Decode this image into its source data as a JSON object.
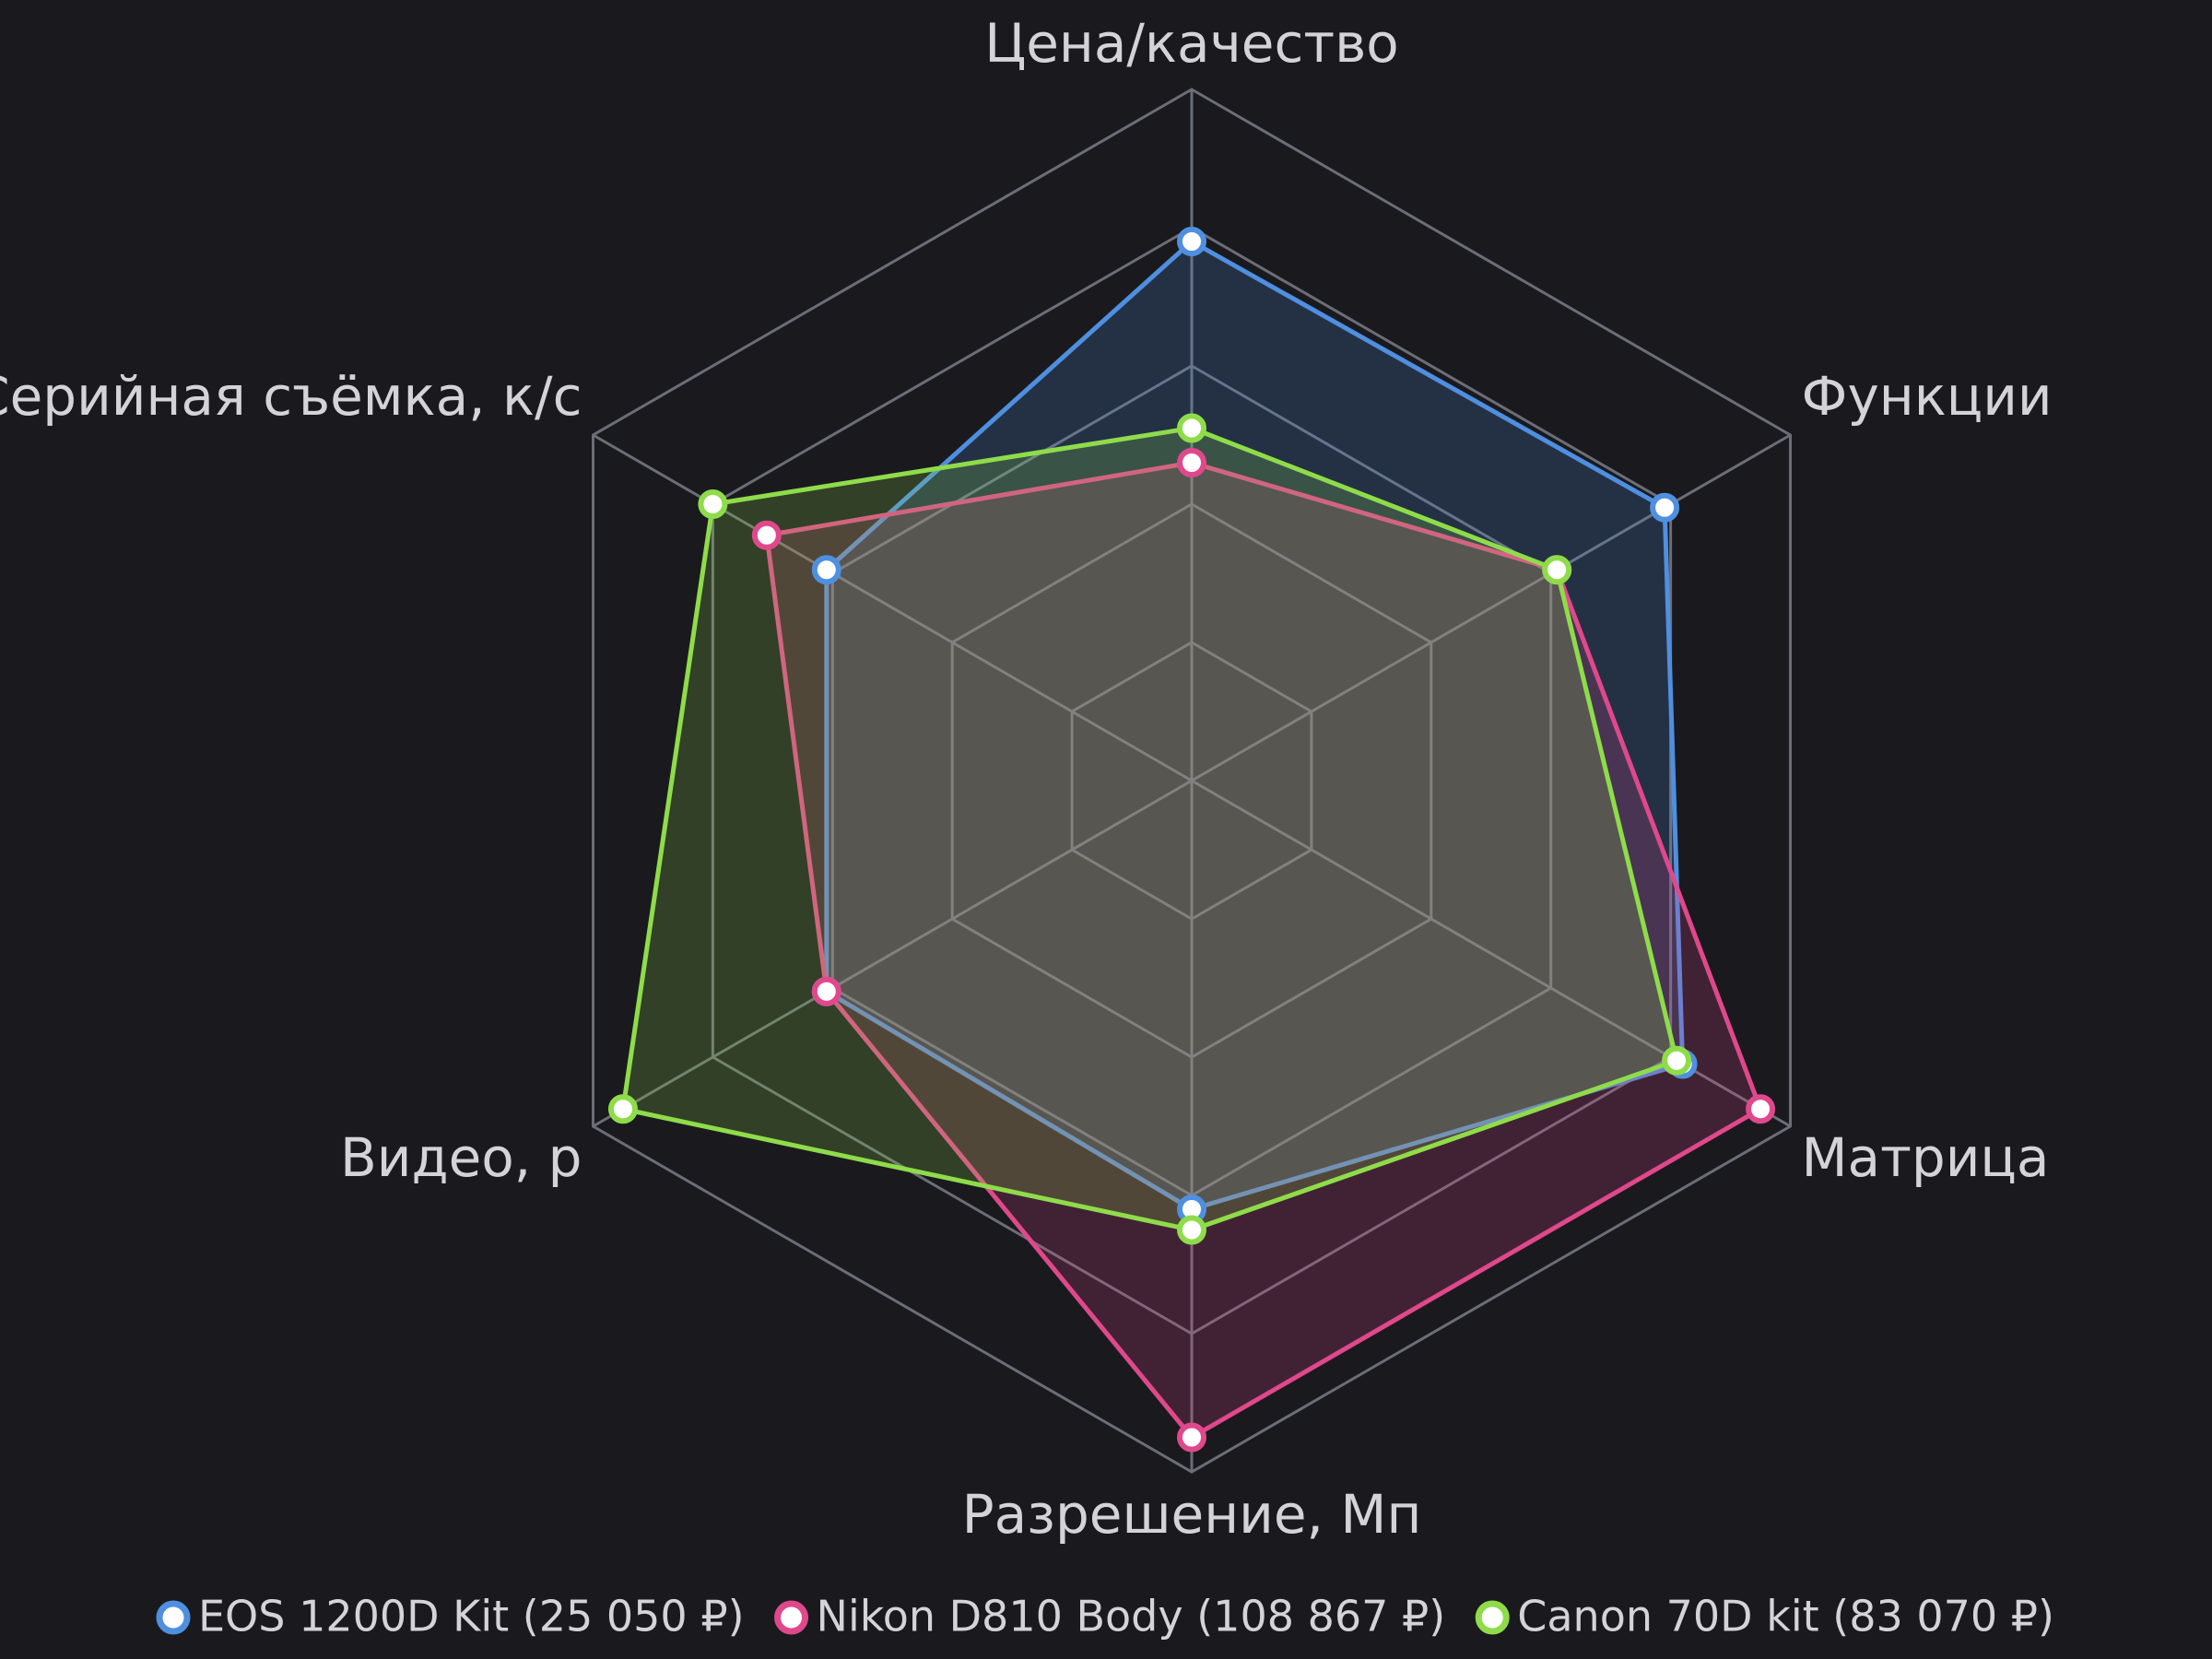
{
  "chart_data": {
    "type": "radar",
    "categories": [
      "Цена/качество",
      "Функции",
      "Матрица",
      "Разрешение, Мп",
      "Видео, р",
      "Серийная съёмка, к/с"
    ],
    "ylim": [
      0,
      5
    ],
    "yticks": [
      1,
      2,
      3,
      4,
      5
    ],
    "grid": true,
    "series": [
      {
        "name": "EOS 1200D Kit (25 050 ₽)",
        "color": "#4f8fe0",
        "values": [
          3.9,
          3.95,
          4.1,
          3.1,
          3.05,
          3.05
        ]
      },
      {
        "name": "Nikon D810 Body (108 867 ₽)",
        "color": "#e0488c",
        "values": [
          2.3,
          3.05,
          4.75,
          4.75,
          3.05,
          3.55
        ]
      },
      {
        "name": "Canon 70D kit (83 070 ₽)",
        "color": "#8fdc4a",
        "values": [
          2.55,
          3.05,
          4.05,
          3.25,
          4.75,
          4.0
        ]
      }
    ]
  }
}
